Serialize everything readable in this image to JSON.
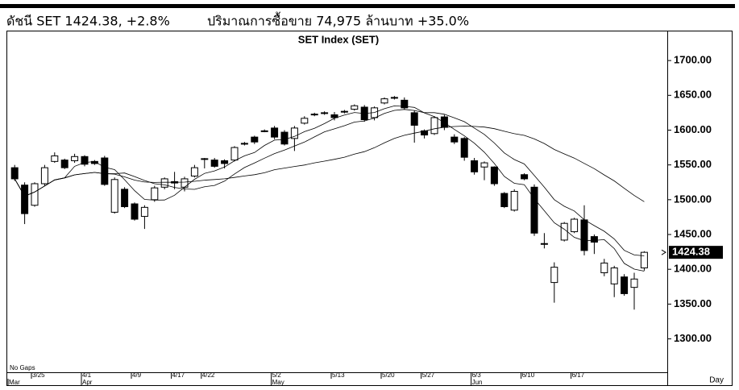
{
  "chart_data": {
    "type": "candlestick",
    "header": [
      "ดัชนี SET 1424.38, +2.8%",
      "ปริมาณการซื้อขาย 74,975 ล้านบาท +35.0%"
    ],
    "title": "SET Index (SET)",
    "annotation": "No Gaps",
    "x_unit": "Day",
    "categories": [
      null,
      null,
      "3/25",
      null,
      null,
      null,
      null,
      "4/1",
      null,
      null,
      null,
      null,
      "4/9",
      null,
      null,
      null,
      "4/17",
      null,
      null,
      "4/22",
      null,
      null,
      null,
      null,
      null,
      null,
      "5/2",
      null,
      null,
      null,
      null,
      null,
      "5/13",
      null,
      null,
      null,
      null,
      "5/20",
      null,
      null,
      null,
      "5/27",
      null,
      null,
      null,
      null,
      "6/3",
      null,
      null,
      null,
      null,
      "6/10",
      null,
      null,
      null,
      null,
      "6/17",
      null,
      null,
      null,
      null,
      null,
      null,
      null
    ],
    "months": [
      "Mar",
      null,
      null,
      null,
      null,
      null,
      null,
      "Apr",
      null,
      null,
      null,
      null,
      null,
      null,
      null,
      null,
      null,
      null,
      null,
      null,
      null,
      null,
      null,
      null,
      null,
      null,
      "May",
      null,
      null,
      null,
      null,
      null,
      null,
      null,
      null,
      null,
      null,
      null,
      null,
      null,
      null,
      null,
      null,
      null,
      null,
      null,
      "Jun",
      null,
      null,
      null,
      null,
      null,
      null,
      null,
      null,
      null,
      null,
      null,
      null,
      null,
      null,
      null,
      null,
      null
    ],
    "open": [
      1546,
      1521,
      1492,
      1523,
      1555,
      1557,
      1556,
      1562,
      1555,
      1560,
      1482,
      1515,
      1494,
      1476,
      1500,
      1518,
      1526,
      1518,
      1534,
      1558,
      1557,
      1556,
      1557,
      1580,
      1590,
      1598,
      1603,
      1597,
      1588,
      1610,
      1622,
      1625,
      1622,
      1626,
      1630,
      1633,
      1618,
      1639,
      1646,
      1643,
      1625,
      1599,
      1595,
      1619,
      1590,
      1588,
      1556,
      1547,
      1547,
      1509,
      1485,
      1536,
      1518,
      1437,
      1381,
      1442,
      1454,
      1471,
      1447,
      1395,
      1379,
      1389,
      1374,
      1402
    ],
    "high": [
      1550,
      1525,
      1525,
      1550,
      1568,
      1559,
      1566,
      1564,
      1557,
      1563,
      1532,
      1518,
      1496,
      1492,
      1520,
      1532,
      1540,
      1533,
      1550,
      1560,
      1560,
      1558,
      1577,
      1583,
      1592,
      1601,
      1606,
      1600,
      1606,
      1620,
      1625,
      1627,
      1626,
      1629,
      1637,
      1636,
      1634,
      1647,
      1649,
      1647,
      1628,
      1601,
      1620,
      1622,
      1594,
      1590,
      1560,
      1555,
      1548,
      1511,
      1515,
      1538,
      1522,
      1452,
      1410,
      1468,
      1474,
      1492,
      1450,
      1415,
      1405,
      1393,
      1395,
      1426
    ],
    "low": [
      1527,
      1465,
      1490,
      1520,
      1553,
      1544,
      1553,
      1548,
      1550,
      1520,
      1480,
      1488,
      1470,
      1458,
      1497,
      1515,
      1515,
      1512,
      1532,
      1545,
      1546,
      1545,
      1555,
      1578,
      1580,
      1597,
      1587,
      1578,
      1570,
      1608,
      1620,
      1622,
      1614,
      1624,
      1628,
      1612,
      1614,
      1637,
      1644,
      1630,
      1582,
      1588,
      1593,
      1600,
      1580,
      1556,
      1536,
      1528,
      1520,
      1488,
      1483,
      1528,
      1448,
      1430,
      1352,
      1440,
      1452,
      1420,
      1422,
      1390,
      1360,
      1362,
      1342,
      1398
    ],
    "close": [
      1530,
      1480,
      1523,
      1546,
      1563,
      1546,
      1562,
      1551,
      1552,
      1522,
      1529,
      1490,
      1472,
      1489,
      1517,
      1530,
      1524,
      1530,
      1546,
      1559,
      1548,
      1552,
      1575,
      1581,
      1583,
      1599,
      1590,
      1580,
      1603,
      1617,
      1623,
      1624,
      1618,
      1627,
      1635,
      1615,
      1632,
      1645,
      1647,
      1632,
      1607,
      1593,
      1618,
      1604,
      1583,
      1561,
      1540,
      1553,
      1523,
      1490,
      1512,
      1530,
      1452,
      1437,
      1403,
      1466,
      1472,
      1427,
      1439,
      1409,
      1402,
      1365,
      1386,
      1424.38
    ],
    "last": {
      "value": 1424.38,
      "label": "1424.38"
    },
    "ylim": [
      1252,
      1743
    ],
    "yticks": [
      {
        "value": 1300,
        "label": "1300.00"
      },
      {
        "value": 1350,
        "label": "1350.00"
      },
      {
        "value": 1400,
        "label": "1400.00"
      },
      {
        "value": 1450,
        "label": "1450.00"
      },
      {
        "value": 1500,
        "label": "1500.00"
      },
      {
        "value": 1550,
        "label": "1550.00"
      },
      {
        "value": 1600,
        "label": "1600.00"
      },
      {
        "value": 1650,
        "label": "1650.00"
      },
      {
        "value": 1700,
        "label": "1700.00"
      }
    ]
  }
}
